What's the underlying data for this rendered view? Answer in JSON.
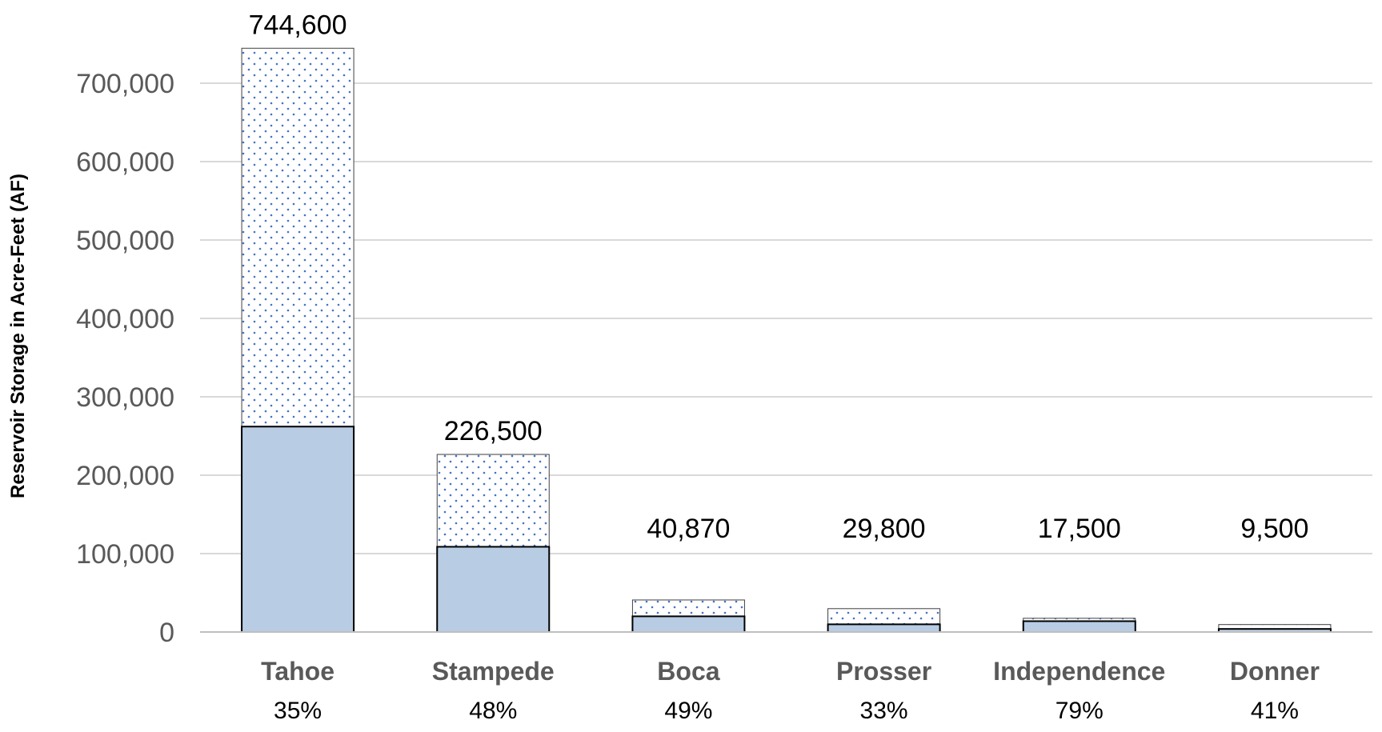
{
  "chart_data": {
    "type": "bar",
    "stacked": true,
    "ylabel": "Reservoir Storage in Acre-Feet (AF)",
    "xlabel": "",
    "ylim": [
      0,
      760000
    ],
    "yticks": [
      0,
      100000,
      200000,
      300000,
      400000,
      500000,
      600000,
      700000
    ],
    "ytick_labels": [
      "0",
      "100,000",
      "200,000",
      "300,000",
      "400,000",
      "500,000",
      "600,000",
      "700,000"
    ],
    "grid": true,
    "legend": "none",
    "categories": [
      "Tahoe",
      "Stampede",
      "Boca",
      "Prosser",
      "Independence",
      "Donner"
    ],
    "percent_labels": [
      "35%",
      "48%",
      "49%",
      "33%",
      "79%",
      "41%"
    ],
    "capacity_labels": [
      "744,600",
      "226,500",
      "40,870",
      "29,800",
      "17,500",
      "9,500"
    ],
    "series": [
      {
        "values": [
          262000,
          108700,
          20000,
          9800,
          13800,
          3900
        ],
        "color": "#b8cce4",
        "pattern": "solid"
      },
      {
        "values": [
          482600,
          117800,
          20870,
          20000,
          3700,
          5600
        ],
        "color": "#ffffff",
        "pattern": "dotted",
        "dot_color": "#4472c4"
      }
    ]
  }
}
